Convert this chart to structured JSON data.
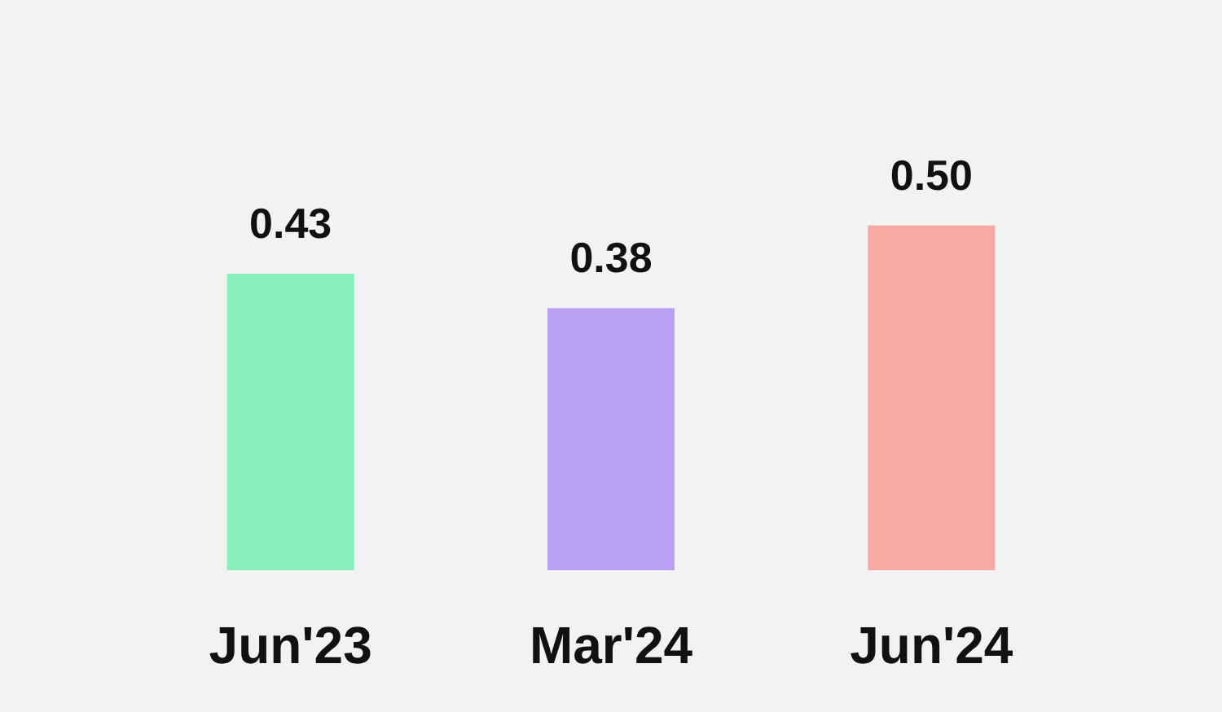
{
  "chart_data": {
    "type": "bar",
    "categories": [
      "Jun'23",
      "Mar'24",
      "Jun'24"
    ],
    "values": [
      0.43,
      0.38,
      0.5
    ],
    "colors": [
      "#86efbb",
      "#b9a0f2",
      "#f7aaa2"
    ],
    "value_labels": [
      "0.43",
      "0.38",
      "0.50"
    ]
  }
}
